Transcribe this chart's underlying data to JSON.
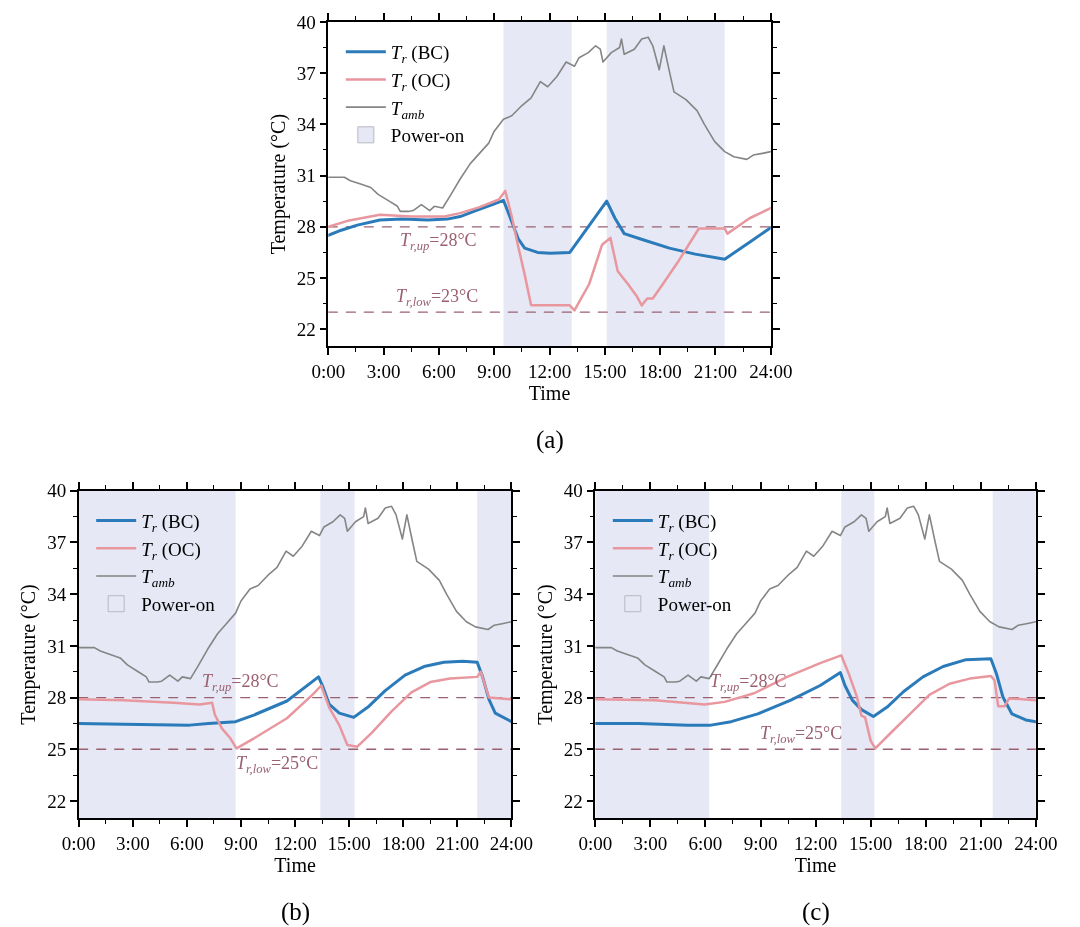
{
  "chart_data": [
    {
      "type": "line",
      "xlabel": "Time",
      "ylabel": "Temperature (°C)",
      "annotations": [
        "(a)"
      ],
      "xlim": [
        0,
        24
      ],
      "xticks": [
        {
          "value": 0,
          "label": "0:00"
        },
        {
          "value": 3,
          "label": "3:00"
        },
        {
          "value": 6,
          "label": "6:00"
        },
        {
          "value": 9,
          "label": "9:00"
        },
        {
          "value": 12,
          "label": "12:00"
        },
        {
          "value": 15,
          "label": "15:00"
        },
        {
          "value": 18,
          "label": "18:00"
        },
        {
          "value": 21,
          "label": "21:00"
        },
        {
          "value": 24,
          "label": "24:00"
        }
      ],
      "ylim": [
        21,
        40
      ],
      "yticks": [
        22,
        25,
        28,
        31,
        34,
        37,
        40
      ],
      "legend": "top left",
      "bands": [
        {
          "axis": "x",
          "from": 9.5,
          "to": 13.2,
          "label": "Power-on",
          "color": "#e6e8f5"
        },
        {
          "axis": "x",
          "from": 15.1,
          "to": 21.5,
          "color": "#e6e8f5"
        }
      ],
      "ref_lines": [
        {
          "axis": "y",
          "value": 28,
          "label": "T$_{r,up}$=28°C",
          "color": "#9a6070",
          "line_style": "dashed"
        },
        {
          "axis": "y",
          "value": 23,
          "label": "T$_{r,low}$=23°C",
          "color": "#9a6070",
          "line_style": "dashed"
        }
      ],
      "series": [
        {
          "name": "T$_{r}$ (BC)",
          "color": "#2b7bba",
          "x": [
            0,
            0.7,
            1.57,
            2.8,
            4.0,
            5.4,
            6.45,
            7.15,
            8.0,
            8.9,
            9.5,
            9.95,
            10.3,
            10.65,
            11.35,
            12.05,
            13.1,
            15.1,
            15.55,
            16.05,
            16.9,
            18.5,
            19.9,
            21.5,
            22.85,
            24
          ],
          "values": [
            27.5,
            27.8,
            28.1,
            28.4,
            28.45,
            28.4,
            28.45,
            28.6,
            28.95,
            29.3,
            29.55,
            28.3,
            27.3,
            26.75,
            26.5,
            26.45,
            26.5,
            29.5,
            28.5,
            27.6,
            27.3,
            26.75,
            26.4,
            26.1,
            27.1,
            27.95
          ]
        },
        {
          "name": "T$_{r}$ (OC)",
          "color": "#e8979f",
          "x": [
            0,
            1.05,
            2.8,
            4.5,
            6.3,
            7.15,
            8.2,
            9.25,
            9.6,
            9.95,
            10.3,
            10.65,
            11.0,
            13.1,
            13.35,
            14.15,
            14.85,
            15.3,
            15.7,
            16.25,
            16.75,
            17.0,
            17.3,
            17.6,
            18.15,
            19.0,
            20.1,
            21.5,
            21.65,
            22.85,
            24
          ],
          "values": [
            28.0,
            28.35,
            28.7,
            28.6,
            28.6,
            28.8,
            29.15,
            29.6,
            30.1,
            28.6,
            26.85,
            25.2,
            23.4,
            23.4,
            23.1,
            24.65,
            26.95,
            27.35,
            25.4,
            24.65,
            23.9,
            23.4,
            23.8,
            23.8,
            24.65,
            26.0,
            27.9,
            27.9,
            27.6,
            28.5,
            29.1
          ]
        },
        {
          "name": "T$_{amb}$",
          "color": "#858585",
          "x": [
            0,
            0.87,
            1.2,
            1.75,
            2.3,
            2.7,
            3.3,
            3.75,
            3.9,
            4.35,
            4.6,
            5.05,
            5.5,
            5.75,
            6.2,
            6.6,
            7.15,
            7.7,
            8.2,
            8.7,
            9.0,
            9.5,
            9.95,
            10.5,
            11.0,
            11.5,
            11.9,
            12.4,
            12.9,
            13.35,
            13.6,
            14.1,
            14.5,
            14.75,
            14.9,
            15.35,
            15.8,
            15.9,
            16.05,
            16.6,
            17.0,
            17.35,
            17.6,
            17.95,
            18.2,
            18.5,
            18.75,
            19.4,
            20.0,
            20.4,
            20.95,
            21.5,
            22.0,
            22.7,
            23.05,
            23.55,
            24
          ],
          "values": [
            30.9,
            30.9,
            30.7,
            30.5,
            30.3,
            29.9,
            29.5,
            29.2,
            28.9,
            28.9,
            28.95,
            29.3,
            28.95,
            29.2,
            29.1,
            29.8,
            30.8,
            31.7,
            32.3,
            32.9,
            33.6,
            34.3,
            34.5,
            35.1,
            35.55,
            36.5,
            36.2,
            36.8,
            37.65,
            37.4,
            37.9,
            38.2,
            38.6,
            38.4,
            37.65,
            38.2,
            38.5,
            39.0,
            38.1,
            38.4,
            39.0,
            39.1,
            38.6,
            37.2,
            38.6,
            37.1,
            35.9,
            35.45,
            34.8,
            34.0,
            33.0,
            32.4,
            32.1,
            31.95,
            32.2,
            32.3,
            32.4
          ]
        }
      ]
    },
    {
      "type": "line",
      "xlabel": "Time",
      "ylabel": "Temperature (°C)",
      "annotations": [
        "(b)"
      ],
      "xlim": [
        0,
        24
      ],
      "xticks": [
        {
          "value": 0,
          "label": "0:00"
        },
        {
          "value": 3,
          "label": "3:00"
        },
        {
          "value": 6,
          "label": "6:00"
        },
        {
          "value": 9,
          "label": "9:00"
        },
        {
          "value": 12,
          "label": "12:00"
        },
        {
          "value": 15,
          "label": "15:00"
        },
        {
          "value": 18,
          "label": "18:00"
        },
        {
          "value": 21,
          "label": "21:00"
        },
        {
          "value": 24,
          "label": "24:00"
        }
      ],
      "ylim": [
        21,
        40
      ],
      "yticks": [
        22,
        25,
        28,
        31,
        34,
        37,
        40
      ],
      "legend": "top left",
      "bands": [
        {
          "axis": "x",
          "from": 0,
          "to": 8.7,
          "label": "Power-on",
          "color": "#e6e8f5"
        },
        {
          "axis": "x",
          "from": 13.4,
          "to": 15.3,
          "color": "#e6e8f5"
        },
        {
          "axis": "x",
          "from": 22.1,
          "to": 24,
          "color": "#e6e8f5"
        }
      ],
      "ref_lines": [
        {
          "axis": "y",
          "value": 28,
          "label": "T$_{r,up}$=28°C",
          "color": "#9a6070",
          "line_style": "dashed"
        },
        {
          "axis": "y",
          "value": 25,
          "label": "T$_{r,low}$=25°C",
          "color": "#9a6070",
          "line_style": "dashed"
        }
      ],
      "series": [
        {
          "name": "T$_{r}$ (BC)",
          "color": "#2b7bba",
          "x": [
            0,
            2.5,
            6.15,
            7.2,
            8.7,
            9.75,
            11.55,
            13.3,
            13.55,
            13.9,
            14.45,
            15.25,
            16.1,
            17.0,
            18.1,
            19.15,
            20.25,
            21.3,
            22.1,
            22.4,
            22.75,
            23.1,
            24
          ],
          "values": [
            26.5,
            26.45,
            26.4,
            26.5,
            26.6,
            27.0,
            27.8,
            29.2,
            28.6,
            27.6,
            27.1,
            26.85,
            27.5,
            28.4,
            29.3,
            29.8,
            30.05,
            30.1,
            30.05,
            29.2,
            27.9,
            27.1,
            26.6
          ]
        },
        {
          "name": "T$_{r}$ (OC)",
          "color": "#e8979f",
          "x": [
            0,
            2.5,
            5.25,
            6.7,
            7.4,
            7.55,
            7.95,
            8.4,
            8.75,
            9.75,
            11.55,
            13.0,
            13.45,
            13.9,
            14.45,
            14.9,
            15.45,
            16.25,
            17.35,
            18.45,
            19.5,
            20.6,
            22.1,
            22.3,
            22.75,
            24
          ],
          "values": [
            27.9,
            27.85,
            27.7,
            27.6,
            27.7,
            27.0,
            26.2,
            25.65,
            25.05,
            25.65,
            26.8,
            28.2,
            28.7,
            27.4,
            26.4,
            25.25,
            25.15,
            25.95,
            27.2,
            28.3,
            28.9,
            29.1,
            29.2,
            29.5,
            28.0,
            27.9
          ]
        },
        {
          "name": "T$_{amb}$",
          "color": "#858585",
          "x": [
            0,
            0.87,
            1.2,
            1.75,
            2.3,
            2.7,
            3.3,
            3.75,
            3.9,
            4.35,
            4.6,
            5.05,
            5.5,
            5.75,
            6.2,
            6.6,
            7.15,
            7.7,
            8.2,
            8.7,
            9.0,
            9.5,
            9.95,
            10.5,
            11.0,
            11.5,
            11.9,
            12.4,
            12.9,
            13.35,
            13.6,
            14.1,
            14.5,
            14.75,
            14.9,
            15.35,
            15.8,
            15.9,
            16.05,
            16.6,
            17.0,
            17.35,
            17.6,
            17.95,
            18.2,
            18.5,
            18.75,
            19.4,
            20.0,
            20.4,
            20.95,
            21.5,
            22.0,
            22.7,
            23.05,
            23.55,
            24
          ],
          "values": [
            30.9,
            30.9,
            30.7,
            30.5,
            30.3,
            29.9,
            29.5,
            29.2,
            28.9,
            28.9,
            28.95,
            29.3,
            28.95,
            29.2,
            29.1,
            29.8,
            30.8,
            31.7,
            32.3,
            32.9,
            33.6,
            34.3,
            34.5,
            35.1,
            35.55,
            36.5,
            36.2,
            36.8,
            37.65,
            37.4,
            37.9,
            38.2,
            38.6,
            38.4,
            37.65,
            38.2,
            38.5,
            39.0,
            38.1,
            38.4,
            39.0,
            39.1,
            38.6,
            37.2,
            38.6,
            37.1,
            35.9,
            35.45,
            34.8,
            34.0,
            33.0,
            32.4,
            32.1,
            31.95,
            32.2,
            32.3,
            32.4
          ]
        }
      ]
    },
    {
      "type": "line",
      "xlabel": "Time",
      "ylabel": "Temperature (°C)",
      "annotations": [
        "(c)"
      ],
      "xlim": [
        0,
        24
      ],
      "xticks": [
        {
          "value": 0,
          "label": "0:00"
        },
        {
          "value": 3,
          "label": "3:00"
        },
        {
          "value": 6,
          "label": "6:00"
        },
        {
          "value": 9,
          "label": "9:00"
        },
        {
          "value": 12,
          "label": "12:00"
        },
        {
          "value": 15,
          "label": "15:00"
        },
        {
          "value": 18,
          "label": "18:00"
        },
        {
          "value": 21,
          "label": "21:00"
        },
        {
          "value": 24,
          "label": "24:00"
        }
      ],
      "ylim": [
        21,
        40
      ],
      "yticks": [
        22,
        25,
        28,
        31,
        34,
        37,
        40
      ],
      "legend": "top left",
      "bands": [
        {
          "axis": "x",
          "from": 0,
          "to": 6.2,
          "label": "Power-on",
          "color": "#e6e8f5"
        },
        {
          "axis": "x",
          "from": 13.4,
          "to": 15.2,
          "color": "#e6e8f5"
        },
        {
          "axis": "x",
          "from": 21.65,
          "to": 24,
          "color": "#e6e8f5"
        }
      ],
      "ref_lines": [
        {
          "axis": "y",
          "value": 28,
          "label": "T$_{r,up}$=28°C",
          "color": "#9a6070",
          "line_style": "dashed"
        },
        {
          "axis": "y",
          "value": 25,
          "label": "T$_{r,low}$=25°C",
          "color": "#9a6070",
          "line_style": "dashed"
        }
      ],
      "series": [
        {
          "name": "T$_{r}$ (BC)",
          "color": "#2b7bba",
          "x": [
            0,
            2.35,
            5.05,
            6.3,
            7.4,
            8.85,
            10.65,
            12.25,
            13.35,
            13.6,
            14.0,
            14.5,
            15.15,
            15.9,
            16.8,
            17.85,
            18.95,
            20.2,
            21.55,
            21.85,
            22.2,
            22.7,
            23.45,
            24
          ],
          "values": [
            26.5,
            26.5,
            26.4,
            26.4,
            26.6,
            27.05,
            27.85,
            28.7,
            29.45,
            28.7,
            27.85,
            27.3,
            26.9,
            27.45,
            28.35,
            29.2,
            29.8,
            30.2,
            30.25,
            29.4,
            28.05,
            27.05,
            26.7,
            26.6
          ]
        },
        {
          "name": "T$_{r}$ (OC)",
          "color": "#e8979f",
          "x": [
            0,
            3.25,
            5.95,
            7.05,
            8.65,
            10.45,
            12.25,
            13.4,
            13.8,
            14.25,
            14.5,
            14.7,
            15.0,
            15.25,
            16.05,
            17.15,
            18.2,
            19.3,
            20.4,
            21.55,
            21.75,
            21.95,
            22.3,
            22.55,
            24
          ],
          "values": [
            27.9,
            27.85,
            27.6,
            27.75,
            28.25,
            29.2,
            30.0,
            30.45,
            29.4,
            28.05,
            26.95,
            26.85,
            25.5,
            25.05,
            25.9,
            27.05,
            28.15,
            28.8,
            29.1,
            29.25,
            29.0,
            27.5,
            27.5,
            27.95,
            27.85
          ]
        },
        {
          "name": "T$_{amb}$",
          "color": "#858585",
          "x": [
            0,
            0.87,
            1.2,
            1.75,
            2.3,
            2.7,
            3.3,
            3.75,
            3.9,
            4.35,
            4.6,
            5.05,
            5.5,
            5.75,
            6.2,
            6.6,
            7.15,
            7.7,
            8.2,
            8.7,
            9.0,
            9.5,
            9.95,
            10.5,
            11.0,
            11.5,
            11.9,
            12.4,
            12.9,
            13.35,
            13.6,
            14.1,
            14.5,
            14.75,
            14.9,
            15.35,
            15.8,
            15.9,
            16.05,
            16.6,
            17.0,
            17.35,
            17.6,
            17.95,
            18.2,
            18.5,
            18.75,
            19.4,
            20.0,
            20.4,
            20.95,
            21.5,
            22.0,
            22.7,
            23.05,
            23.55,
            24
          ],
          "values": [
            30.9,
            30.9,
            30.7,
            30.5,
            30.3,
            29.9,
            29.5,
            29.2,
            28.9,
            28.9,
            28.95,
            29.3,
            28.95,
            29.2,
            29.1,
            29.8,
            30.8,
            31.7,
            32.3,
            32.9,
            33.6,
            34.3,
            34.5,
            35.1,
            35.55,
            36.5,
            36.2,
            36.8,
            37.65,
            37.4,
            37.9,
            38.2,
            38.6,
            38.4,
            37.65,
            38.2,
            38.5,
            39.0,
            38.1,
            38.4,
            39.0,
            39.1,
            38.6,
            37.2,
            38.6,
            37.1,
            35.9,
            35.45,
            34.8,
            34.0,
            33.0,
            32.4,
            32.1,
            31.95,
            32.2,
            32.3,
            32.4
          ]
        }
      ]
    }
  ]
}
